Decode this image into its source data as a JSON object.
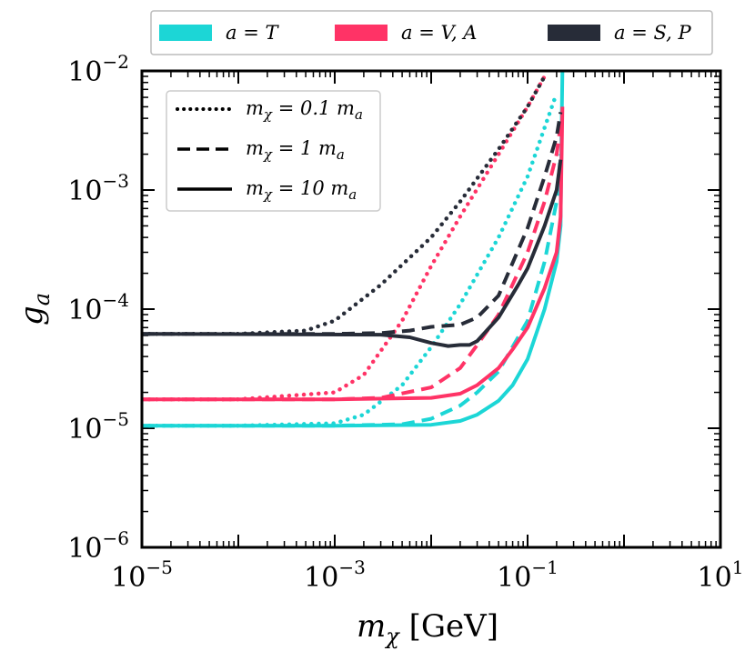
{
  "chart_data": {
    "type": "line",
    "xscale": "log",
    "yscale": "log",
    "xlim": [
      1e-05,
      10
    ],
    "ylim": [
      1e-06,
      0.01
    ],
    "xlabel": {
      "main": "m",
      "sub": "χ",
      "unit": " [GeV]"
    },
    "ylabel": {
      "main": "g",
      "sub": "a"
    },
    "xticks": [
      {
        "value": 1e-05,
        "base": "10",
        "exp": "−5"
      },
      {
        "value": 0.001,
        "base": "10",
        "exp": "−3"
      },
      {
        "value": 0.1,
        "base": "10",
        "exp": "−1"
      },
      {
        "value": 10,
        "base": "10",
        "exp": "1"
      }
    ],
    "yticks": [
      {
        "value": 1e-06,
        "base": "10",
        "exp": "−6"
      },
      {
        "value": 1e-05,
        "base": "10",
        "exp": "−5"
      },
      {
        "value": 0.0001,
        "base": "10",
        "exp": "−4"
      },
      {
        "value": 0.001,
        "base": "10",
        "exp": "−3"
      },
      {
        "value": 0.01,
        "base": "10",
        "exp": "−2"
      }
    ],
    "color_legend": [
      {
        "label": "a = T",
        "color": "#1cd6d6"
      },
      {
        "label": "a = V, A",
        "color": "#ff3366"
      },
      {
        "label": "a = S, P",
        "color": "#272c38"
      }
    ],
    "style_legend": [
      {
        "label": "m",
        "sub": "χ",
        "rest": " = 0.1 m",
        "sub2": "a",
        "dash": "dotted"
      },
      {
        "label": "m",
        "sub": "χ",
        "rest": " = 1 m",
        "sub2": "a",
        "dash": "dashed"
      },
      {
        "label": "m",
        "sub": "χ",
        "rest": " = 10 m",
        "sub2": "a",
        "dash": "solid"
      }
    ],
    "series": [
      {
        "name": "T dotted",
        "color": "#1cd6d6",
        "dash": "dotted",
        "x": [
          1e-05,
          0.0001,
          0.001,
          0.002,
          0.005,
          0.01,
          0.02,
          0.05,
          0.1,
          0.2
        ],
        "y": [
          1.05e-05,
          1.05e-05,
          1.1e-05,
          1.3e-05,
          2.3e-05,
          4.8e-05,
          0.00011,
          0.0004,
          0.0013,
          0.0065
        ]
      },
      {
        "name": "T dashed",
        "color": "#1cd6d6",
        "dash": "dashed",
        "x": [
          1e-05,
          0.001,
          0.005,
          0.01,
          0.02,
          0.03,
          0.05,
          0.1,
          0.15,
          0.2,
          0.22
        ],
        "y": [
          1.05e-05,
          1.05e-05,
          1.08e-05,
          1.2e-05,
          1.55e-05,
          2e-05,
          3e-05,
          8e-05,
          0.00025,
          0.0008,
          0.002
        ]
      },
      {
        "name": "T solid",
        "color": "#1cd6d6",
        "dash": "solid",
        "x": [
          1e-05,
          0.001,
          0.01,
          0.02,
          0.03,
          0.05,
          0.07,
          0.1,
          0.15,
          0.2,
          0.22,
          0.225,
          0.23
        ],
        "y": [
          1.05e-05,
          1.05e-05,
          1.07e-05,
          1.15e-05,
          1.3e-05,
          1.7e-05,
          2.3e-05,
          3.8e-05,
          0.0001,
          0.00025,
          0.0005,
          0.003,
          0.01
        ]
      },
      {
        "name": "V,A dotted",
        "color": "#ff3366",
        "dash": "dotted",
        "x": [
          1e-05,
          0.0001,
          0.001,
          0.002,
          0.005,
          0.01,
          0.02,
          0.05,
          0.1,
          0.15
        ],
        "y": [
          1.75e-05,
          1.75e-05,
          2e-05,
          2.8e-05,
          8e-05,
          0.00023,
          0.0006,
          0.002,
          0.005,
          0.009
        ]
      },
      {
        "name": "V,A dashed",
        "color": "#ff3366",
        "dash": "dashed",
        "x": [
          1e-05,
          0.001,
          0.003,
          0.01,
          0.02,
          0.03,
          0.05,
          0.1,
          0.15,
          0.2,
          0.22
        ],
        "y": [
          1.75e-05,
          1.75e-05,
          1.8e-05,
          2.2e-05,
          3.2e-05,
          5e-05,
          9e-05,
          0.0003,
          0.0008,
          0.002,
          0.0035
        ]
      },
      {
        "name": "V,A solid",
        "color": "#ff3366",
        "dash": "solid",
        "x": [
          1e-05,
          0.001,
          0.01,
          0.02,
          0.03,
          0.05,
          0.07,
          0.1,
          0.15,
          0.2,
          0.22,
          0.23
        ],
        "y": [
          1.75e-05,
          1.75e-05,
          1.8e-05,
          1.95e-05,
          2.3e-05,
          3.2e-05,
          4.6e-05,
          7e-05,
          0.00015,
          0.0003,
          0.0006,
          0.005
        ]
      },
      {
        "name": "S,P dotted",
        "color": "#272c38",
        "dash": "dotted",
        "x": [
          1e-05,
          0.0001,
          0.0005,
          0.001,
          0.003,
          0.01,
          0.02,
          0.05,
          0.1,
          0.15
        ],
        "y": [
          6.2e-05,
          6.2e-05,
          6.6e-05,
          8e-05,
          0.00016,
          0.0004,
          0.0008,
          0.0022,
          0.005,
          0.009
        ]
      },
      {
        "name": "S,P dashed",
        "color": "#272c38",
        "dash": "dashed",
        "x": [
          1e-05,
          0.001,
          0.003,
          0.006,
          0.01,
          0.02,
          0.03,
          0.05,
          0.1,
          0.15,
          0.2,
          0.22
        ],
        "y": [
          6.2e-05,
          6.2e-05,
          6.3e-05,
          6.6e-05,
          7.1e-05,
          7.4e-05,
          8.5e-05,
          0.00013,
          0.00048,
          0.0013,
          0.0028,
          0.0045
        ]
      },
      {
        "name": "S,P solid",
        "color": "#272c38",
        "dash": "solid",
        "x": [
          1e-05,
          0.003,
          0.006,
          0.01,
          0.015,
          0.02,
          0.025,
          0.03,
          0.05,
          0.08,
          0.1,
          0.15,
          0.2,
          0.22
        ],
        "y": [
          6.2e-05,
          6.1e-05,
          5.8e-05,
          5.2e-05,
          4.9e-05,
          5e-05,
          5e-05,
          5.4e-05,
          8.5e-05,
          0.00016,
          0.00022,
          0.0005,
          0.001,
          0.0018
        ]
      }
    ]
  }
}
